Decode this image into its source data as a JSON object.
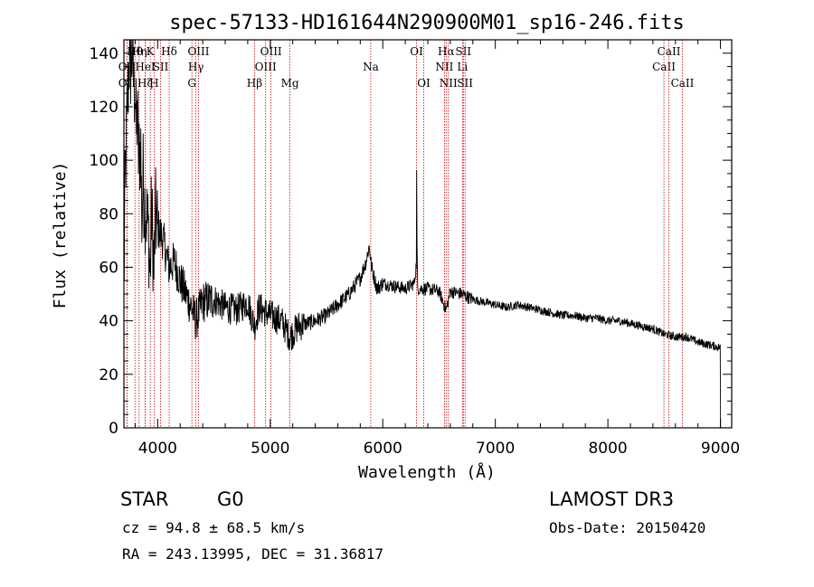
{
  "chart_data": {
    "type": "line",
    "title": "spec-57133-HD161644N290900M01_sp16-246.fits",
    "xlabel": "Wavelength (Å)",
    "ylabel": "Flux (relative)",
    "xlim": [
      3700,
      9100
    ],
    "ylim": [
      0,
      145
    ],
    "x_ticks": [
      4000,
      5000,
      6000,
      7000,
      8000,
      9000
    ],
    "y_ticks": [
      0,
      20,
      40,
      60,
      80,
      100,
      120,
      140
    ],
    "series": [
      {
        "name": "flux",
        "anchors": [
          [
            3700,
            50
          ],
          [
            3710,
            90
          ],
          [
            3720,
            105
          ],
          [
            3730,
            120
          ],
          [
            3740,
            130
          ],
          [
            3750,
            142
          ],
          [
            3760,
            135
          ],
          [
            3770,
            138
          ],
          [
            3780,
            143
          ],
          [
            3790,
            125
          ],
          [
            3800,
            128
          ],
          [
            3810,
            110
          ],
          [
            3820,
            118
          ],
          [
            3830,
            100
          ],
          [
            3850,
            105
          ],
          [
            3860,
            75
          ],
          [
            3870,
            95
          ],
          [
            3880,
            85
          ],
          [
            3900,
            80
          ],
          [
            3920,
            72
          ],
          [
            3933,
            55
          ],
          [
            3945,
            82
          ],
          [
            3968,
            58
          ],
          [
            3980,
            80
          ],
          [
            4000,
            75
          ],
          [
            4050,
            70
          ],
          [
            4100,
            60
          ],
          [
            4150,
            62
          ],
          [
            4200,
            55
          ],
          [
            4250,
            50
          ],
          [
            4300,
            45
          ],
          [
            4340,
            40
          ],
          [
            4400,
            47
          ],
          [
            4500,
            48
          ],
          [
            4600,
            45
          ],
          [
            4700,
            44
          ],
          [
            4800,
            47
          ],
          [
            4861,
            38
          ],
          [
            4900,
            45
          ],
          [
            5000,
            42
          ],
          [
            5100,
            40
          ],
          [
            5175,
            34
          ],
          [
            5250,
            38
          ],
          [
            5400,
            40
          ],
          [
            5500,
            42
          ],
          [
            5600,
            46
          ],
          [
            5700,
            50
          ],
          [
            5800,
            56
          ],
          [
            5850,
            62
          ],
          [
            5880,
            68
          ],
          [
            5900,
            60
          ],
          [
            5950,
            52
          ],
          [
            6000,
            54
          ],
          [
            6100,
            53
          ],
          [
            6200,
            52
          ],
          [
            6280,
            54
          ],
          [
            6300,
            62
          ],
          [
            6301,
            95
          ],
          [
            6303,
            70
          ],
          [
            6310,
            52
          ],
          [
            6400,
            52
          ],
          [
            6500,
            51
          ],
          [
            6563,
            44
          ],
          [
            6600,
            51
          ],
          [
            6700,
            50
          ],
          [
            6800,
            48
          ],
          [
            6900,
            47
          ],
          [
            7000,
            46
          ],
          [
            7100,
            45
          ],
          [
            7200,
            46
          ],
          [
            7300,
            45
          ],
          [
            7400,
            44
          ],
          [
            7500,
            43
          ],
          [
            7600,
            42
          ],
          [
            7700,
            42
          ],
          [
            7800,
            41
          ],
          [
            7900,
            41
          ],
          [
            8000,
            40
          ],
          [
            8100,
            40
          ],
          [
            8200,
            39
          ],
          [
            8300,
            38
          ],
          [
            8400,
            37
          ],
          [
            8500,
            35
          ],
          [
            8600,
            34
          ],
          [
            8700,
            34
          ],
          [
            8800,
            32
          ],
          [
            8900,
            31
          ],
          [
            9000,
            30
          ],
          [
            9001,
            0
          ]
        ]
      }
    ],
    "line_markers": [
      {
        "wave": 3727,
        "label": "OII",
        "row": 2
      },
      {
        "wave": 3727,
        "label": "OII",
        "row": 3
      },
      {
        "wave": 3798,
        "label": "Hθ",
        "row": 1
      },
      {
        "wave": 3835,
        "label": "Hη",
        "row": 1
      },
      {
        "wave": 3889,
        "label": "HeI",
        "row": 2
      },
      {
        "wave": 3889,
        "label": "Hζ",
        "row": 3
      },
      {
        "wave": 3934,
        "label": "K",
        "row": 1
      },
      {
        "wave": 3968,
        "label": "H",
        "row": 3
      },
      {
        "wave": 4026,
        "label": "SII",
        "row": 2
      },
      {
        "wave": 4102,
        "label": "Hδ",
        "row": 1
      },
      {
        "wave": 4304,
        "label": "G",
        "row": 3
      },
      {
        "wave": 4340,
        "label": "Hγ",
        "row": 2
      },
      {
        "wave": 4363,
        "label": "OIII",
        "row": 1
      },
      {
        "wave": 4861,
        "label": "Hβ",
        "row": 3
      },
      {
        "wave": 4959,
        "label": "OIII",
        "row": 2
      },
      {
        "wave": 5007,
        "label": "OIII",
        "row": 1
      },
      {
        "wave": 5175,
        "label": "Mg",
        "row": 3
      },
      {
        "wave": 5893,
        "label": "Na",
        "row": 2
      },
      {
        "wave": 6300,
        "label": "OI",
        "row": 1
      },
      {
        "wave": 6364,
        "label": "OI",
        "row": 3
      },
      {
        "wave": 6548,
        "label": "NII",
        "row": 2
      },
      {
        "wave": 6563,
        "label": "Hα",
        "row": 1
      },
      {
        "wave": 6583,
        "label": "NII",
        "row": 3
      },
      {
        "wave": 6708,
        "label": "Li",
        "row": 2
      },
      {
        "wave": 6716,
        "label": "SII",
        "row": 1
      },
      {
        "wave": 6731,
        "label": "SII",
        "row": 3
      },
      {
        "wave": 8498,
        "label": "CaII",
        "row": 2
      },
      {
        "wave": 8542,
        "label": "CaII",
        "row": 1
      },
      {
        "wave": 8662,
        "label": "CaII",
        "row": 3
      }
    ],
    "colors": {
      "line": "#000000",
      "marker": "#cc0000"
    }
  },
  "info": {
    "class_label": "STAR",
    "subclass": "G0",
    "survey": "LAMOST DR3",
    "cz": "cz = 94.8 ± 68.5 km/s",
    "obs_date": "Obs-Date: 20150420",
    "coords": "RA = 243.13995, DEC =  31.36817"
  }
}
